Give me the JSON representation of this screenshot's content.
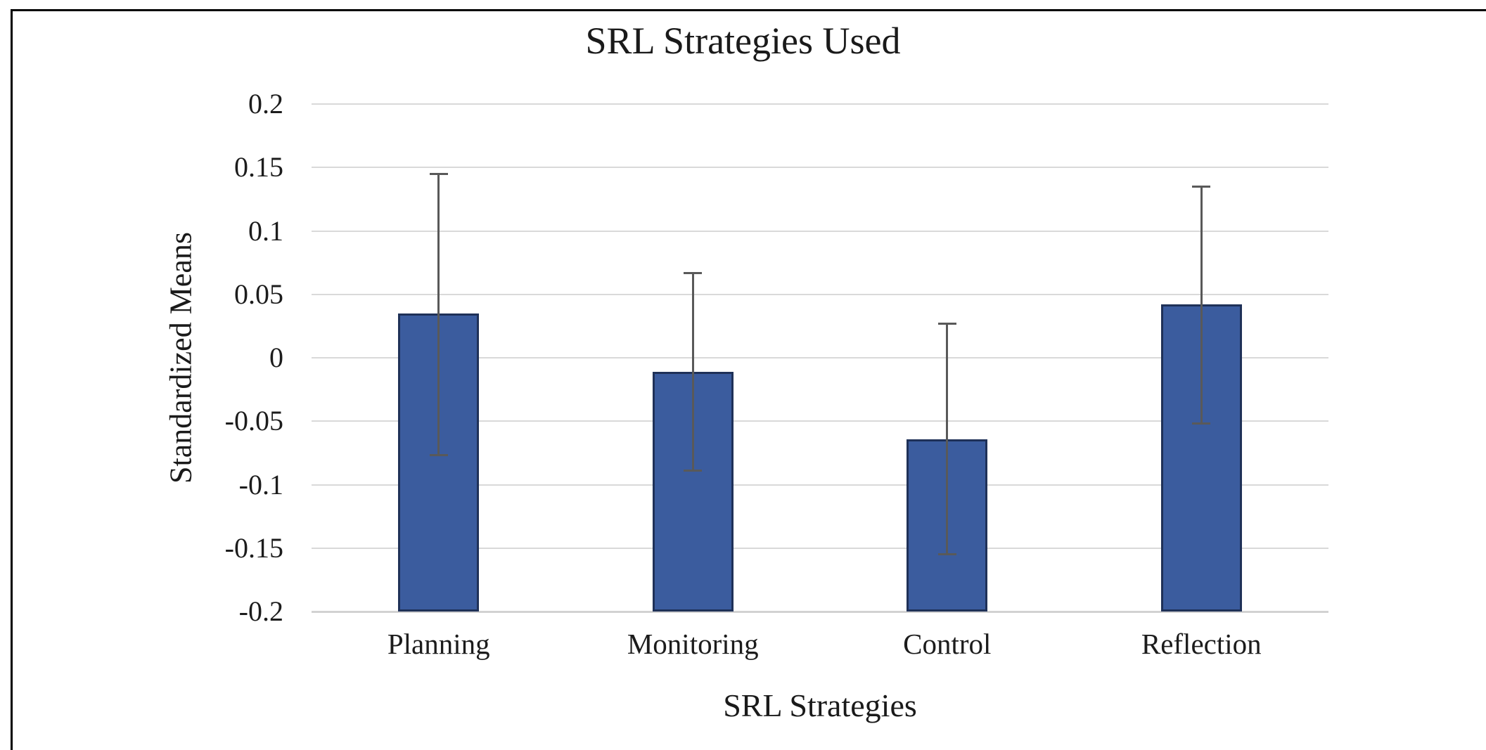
{
  "figure": {
    "title": "SRL Strategies Used"
  },
  "chart_data": {
    "type": "bar",
    "title": "SRL Strategies Used",
    "xlabel": "SRL Strategies",
    "ylabel": "Standardized Means",
    "categories": [
      "Planning",
      "Monitoring",
      "Control",
      "Reflection"
    ],
    "values": [
      0.035,
      -0.011,
      -0.064,
      0.042
    ],
    "error_upper": [
      0.145,
      0.067,
      0.027,
      0.135
    ],
    "error_lower": [
      -0.077,
      -0.089,
      -0.155,
      -0.052
    ],
    "ylim": [
      -0.2,
      0.2
    ],
    "ytick_step": 0.05,
    "ytick_labels": [
      "0.2",
      "0.15",
      "0.1",
      "0.05",
      "0",
      "-0.05",
      "-0.1",
      "-0.15",
      "-0.2"
    ],
    "grid": true,
    "legend": "none",
    "bar_base": "axis_min",
    "colors": {
      "bar_fill": "#3b5c9e",
      "bar_border": "#1f3158",
      "error_bar": "#595959",
      "gridline": "#d9d9d9",
      "frame": "#000000",
      "text": "#1c1c1c"
    }
  }
}
